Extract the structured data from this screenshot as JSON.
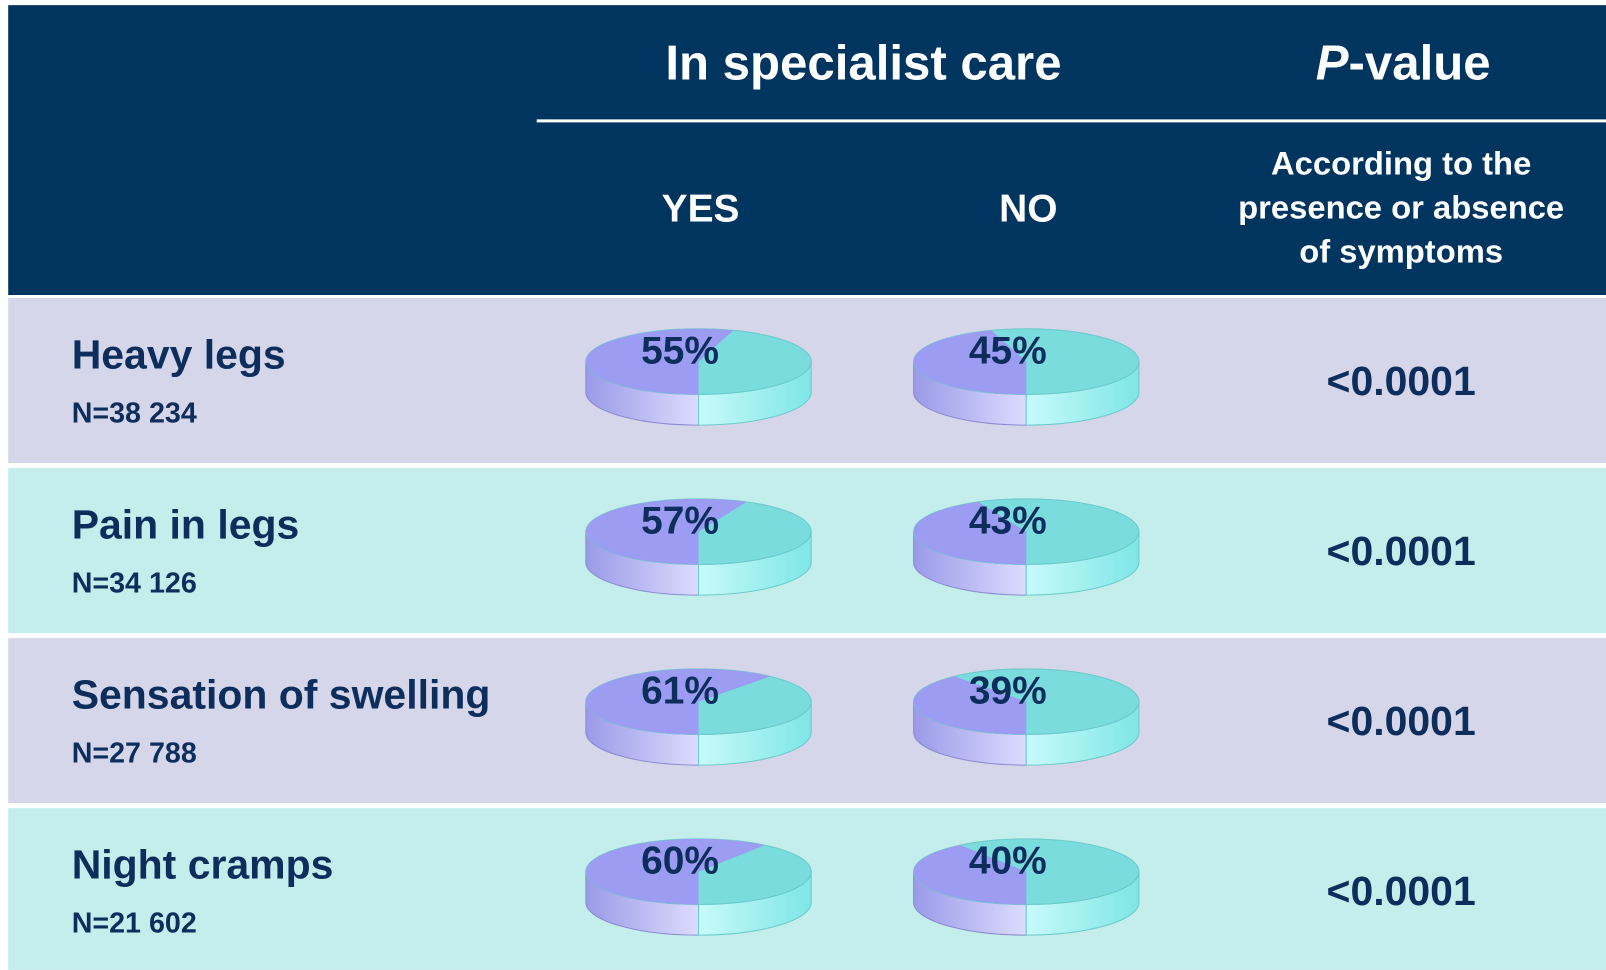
{
  "header": {
    "group_title": "In specialist care",
    "yes": "YES",
    "no": "NO",
    "pvalue_title": [
      "P",
      "-value"
    ],
    "pvalue_note": [
      "According to the",
      "presence or absence",
      "of symptoms"
    ]
  },
  "rows": [
    {
      "label": "Heavy legs",
      "n": "N=38 234",
      "values": [
        55,
        45
      ],
      "value_labels": [
        "55%",
        "45%"
      ],
      "pvalue": "<0.0001"
    },
    {
      "label": "Pain in legs",
      "n": "N=34 126",
      "values": [
        57,
        43
      ],
      "value_labels": [
        "57%",
        "43%"
      ],
      "pvalue": "<0.0001"
    },
    {
      "label": "Sensation of swelling",
      "n": "N=27 788",
      "values": [
        61,
        39
      ],
      "value_labels": [
        "61%",
        "39%"
      ],
      "pvalue": "<0.0001"
    },
    {
      "label": "Night cramps",
      "n": "N=21 602",
      "values": [
        60,
        40
      ],
      "value_labels": [
        "60%",
        "40%"
      ],
      "pvalue": "<0.0001"
    }
  ]
}
